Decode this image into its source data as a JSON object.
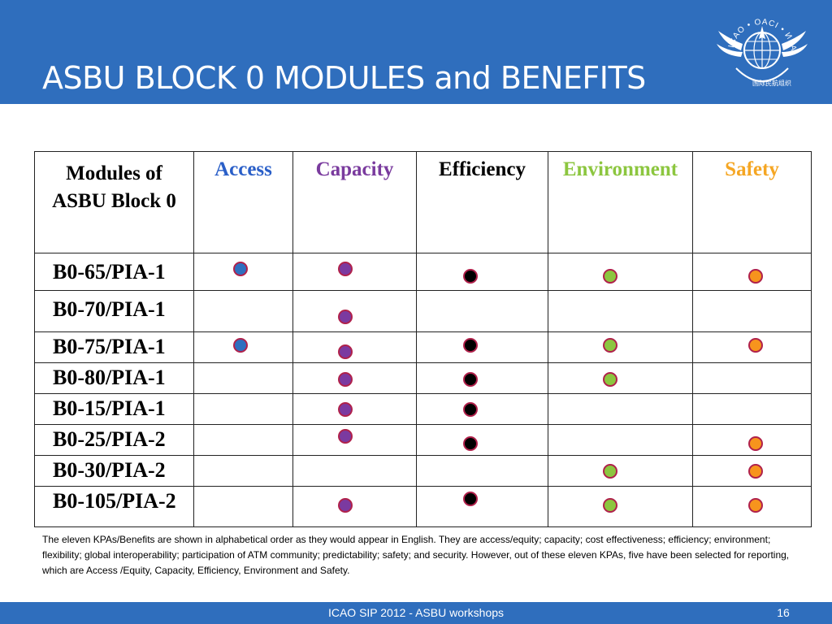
{
  "slide": {
    "title": "ASBU BLOCK 0 MODULES and BENEFITS",
    "logo": "ICAO emblem"
  },
  "table": {
    "header_label": [
      "Modules of",
      "ASBU Block 0"
    ],
    "columns": [
      {
        "label": "Access",
        "color": "#2a5fc8",
        "dot_color": "#2f6fbf"
      },
      {
        "label": "Capacity",
        "color": "#7a3b9e",
        "dot_color": "#7b3aa0"
      },
      {
        "label": "Efficiency",
        "color": "#000000",
        "dot_color": "#000000"
      },
      {
        "label": "Environment",
        "color": "#8cc63f",
        "dot_color": "#8cc63f"
      },
      {
        "label": "Safety",
        "color": "#f5a623",
        "dot_color": "#f7941d"
      }
    ],
    "rows": [
      {
        "module": "B0-65/PIA-1",
        "benefits": [
          true,
          true,
          true,
          true,
          true
        ]
      },
      {
        "module": "B0-70/PIA-1",
        "benefits": [
          false,
          true,
          false,
          false,
          false
        ]
      },
      {
        "module": "B0-75/PIA-1",
        "benefits": [
          true,
          true,
          true,
          true,
          true
        ]
      },
      {
        "module": "B0-80/PIA-1",
        "benefits": [
          false,
          true,
          true,
          true,
          false
        ]
      },
      {
        "module": "B0-15/PIA-1",
        "benefits": [
          false,
          true,
          true,
          false,
          false
        ]
      },
      {
        "module": "B0-25/PIA-2",
        "benefits": [
          false,
          true,
          true,
          false,
          true
        ]
      },
      {
        "module": "B0-30/PIA-2",
        "benefits": [
          false,
          false,
          false,
          true,
          true
        ]
      },
      {
        "module": "B0-105/PIA-2",
        "benefits": [
          false,
          true,
          true,
          true,
          true
        ]
      }
    ]
  },
  "note": "The eleven KPAs/Benefits are shown in alphabetical order as they would appear in  English. They are access/equity; capacity; cost effectiveness; efficiency; environment; flexibility; global interoperability; participation of ATM community; predictability; safety; and security. However, out of these eleven KPAs, five have been selected for reporting, which are Access /Equity, Capacity, Efficiency, Environment and Safety.",
  "footer": {
    "text": "ICAO SIP 2012 - ASBU workshops",
    "page_number": "16"
  }
}
